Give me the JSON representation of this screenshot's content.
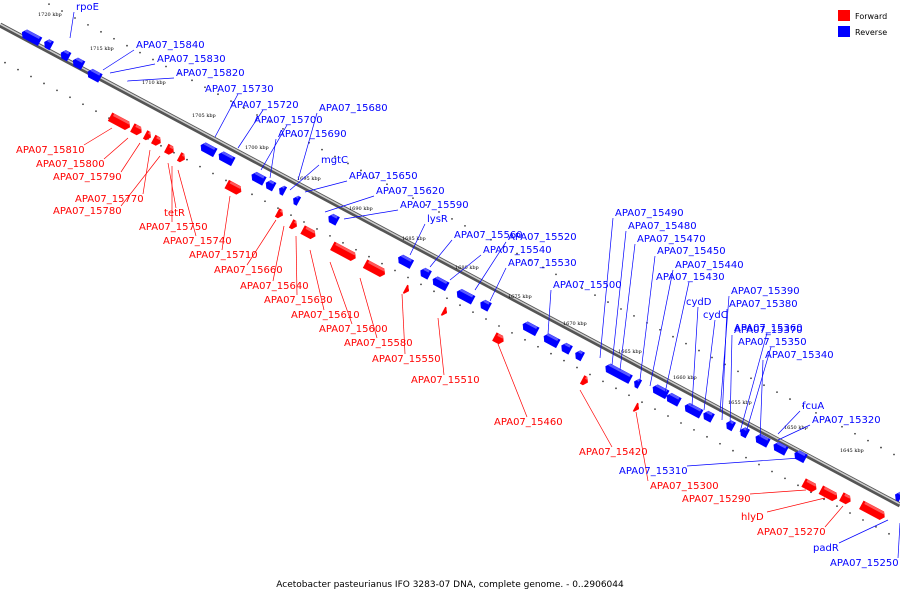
{
  "caption": "Acetobacter pasteurianus IFO 3283-07 DNA, complete genome. - 0..2906044",
  "legend": [
    {
      "label": "Forward",
      "color": "#ff0000"
    },
    {
      "label": "Reverse",
      "color": "#0000ff"
    }
  ],
  "colors": {
    "forward": "#ff0000",
    "reverse": "#0000ff",
    "axis": "#888888"
  },
  "kbp_ticks": [
    "1720 kbp",
    "1715 kbp",
    "1710 kbp",
    "1705 kbp",
    "1700 kbp",
    "1695 kbp",
    "1690 kbp",
    "1685 kbp",
    "1680 kbp",
    "1675 kbp",
    "1670 kbp",
    "1665 kbp",
    "1660 kbp",
    "1655 kbp",
    "1650 kbp",
    "1645 kbp"
  ],
  "reverse_labels": [
    "rpoE",
    "APA07_15840",
    "APA07_15830",
    "APA07_15820",
    "APA07_15730",
    "APA07_15720",
    "APA07_15680",
    "APA07_15700",
    "APA07_15690",
    "mgtC",
    "APA07_15650",
    "APA07_15620",
    "APA07_15590",
    "lysR",
    "APA07_15560",
    "APA07_15540",
    "APA07_15520",
    "APA07_15490",
    "APA07_15480",
    "APA07_15530",
    "APA07_15470",
    "APA07_15450",
    "APA07_15440",
    "APA07_15500",
    "APA07_15430",
    "cydD",
    "APA07_15390",
    "APA07_15380",
    "cydC",
    "APA07_15370",
    "APA07_15360",
    "APA07_15350",
    "APA07_15340",
    "fcuA",
    "APA07_15320",
    "APA07_15310",
    "padR",
    "APA07_15250"
  ],
  "forward_labels": [
    "APA07_15810",
    "APA07_15800",
    "APA07_15790",
    "APA07_15770",
    "APA07_15780",
    "tetR",
    "APA07_15750",
    "APA07_15740",
    "APA07_15710",
    "APA07_15660",
    "APA07_15640",
    "APA07_15630",
    "APA07_15610",
    "APA07_15600",
    "APA07_15580",
    "APA07_15550",
    "APA07_15510",
    "APA07_15460",
    "APA07_15420",
    "APA07_15300",
    "APA07_15290",
    "hlyD",
    "APA07_15270"
  ]
}
